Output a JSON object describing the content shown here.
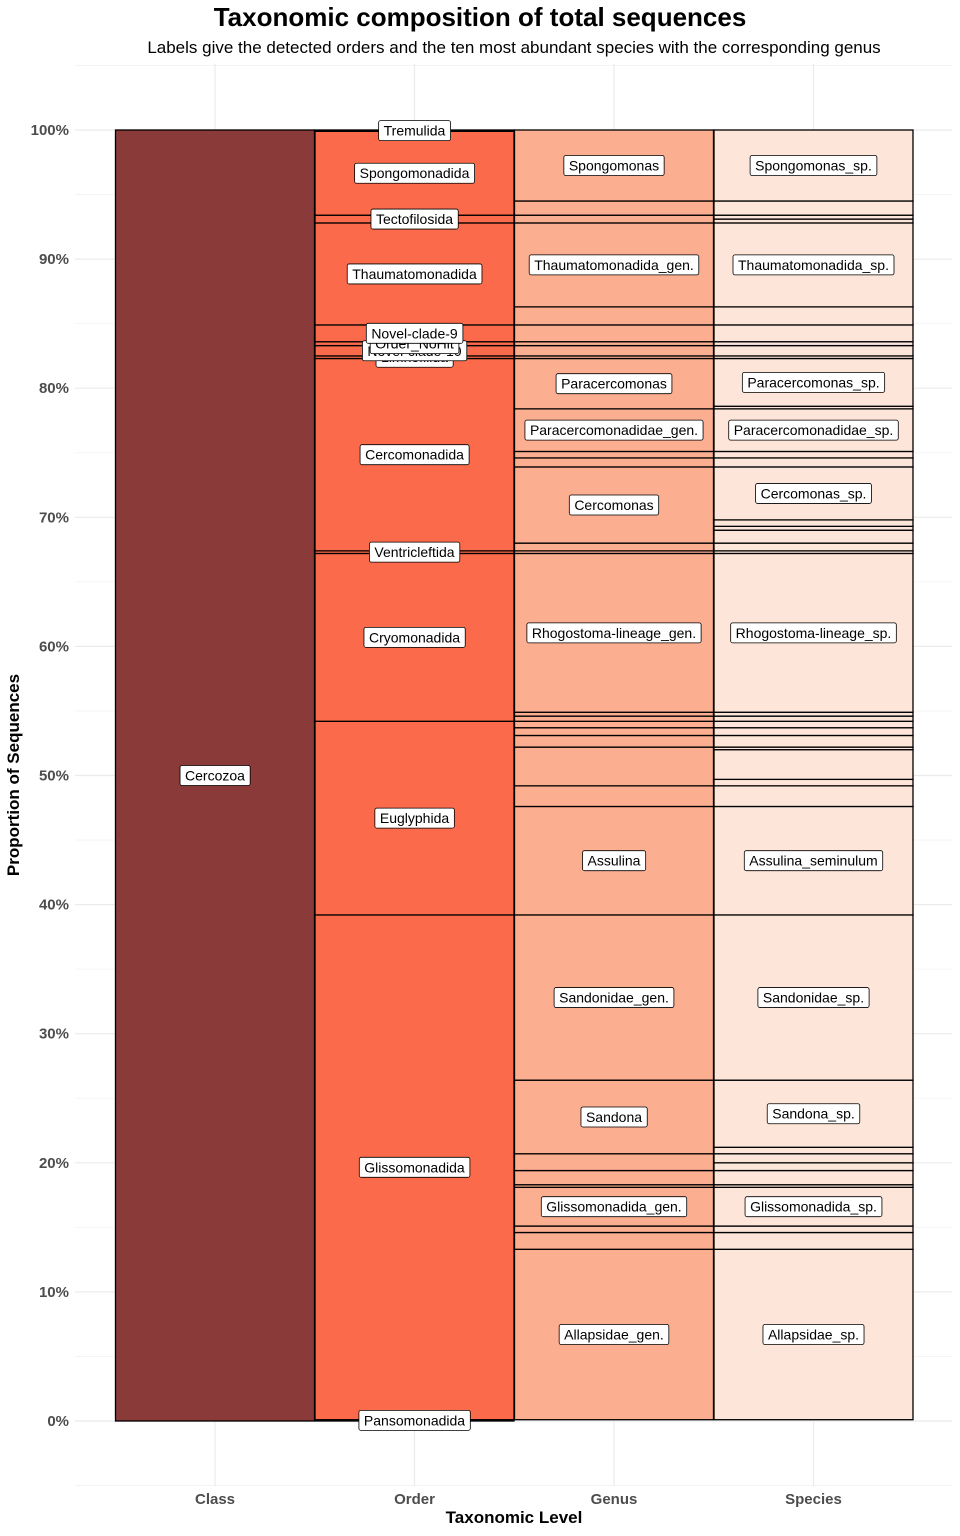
{
  "chart_data": {
    "type": "bar",
    "title": "Taxonomic composition of total sequences",
    "subtitle": "Labels give the detected orders and the ten most abundant species with the corresponding genus",
    "xlabel": "Taxonomic Level",
    "ylabel": "Proportion of Sequences",
    "ylim": [
      0,
      1
    ],
    "y_ticks": [
      "0%",
      "10%",
      "20%",
      "30%",
      "40%",
      "50%",
      "60%",
      "70%",
      "80%",
      "90%",
      "100%"
    ],
    "grid": true,
    "categories": [
      "Class",
      "Order",
      "Genus",
      "Species"
    ],
    "colors": {
      "Class": "#8b3a3a",
      "Order": "#fb6a4a",
      "Genus": "#fcae91",
      "Species": "#fee5d9",
      "outline": "#000000",
      "grid": "#ebebeb"
    },
    "series": [
      {
        "level": "Class",
        "segments": [
          {
            "label": "Cercozoa",
            "from": 0.0,
            "to": 1.0
          }
        ]
      },
      {
        "level": "Order",
        "segments": [
          {
            "label": "Pansomonadida",
            "from": 0.0,
            "to": 0.001
          },
          {
            "label": "Glissomonadida",
            "from": 0.001,
            "to": 0.392
          },
          {
            "label": "Euglyphida",
            "from": 0.392,
            "to": 0.542
          },
          {
            "label": "Cryomonadida",
            "from": 0.542,
            "to": 0.672
          },
          {
            "label": "Ventricleftida",
            "from": 0.672,
            "to": 0.674
          },
          {
            "label": "Cercomonadida",
            "from": 0.674,
            "to": 0.823
          },
          {
            "label": "Limnofilida",
            "from": 0.823,
            "to": 0.825
          },
          {
            "label": "Novel-clade-10",
            "from": 0.825,
            "to": 0.833
          },
          {
            "label": "Order_NoHit",
            "from": 0.833,
            "to": 0.836
          },
          {
            "label": "Novel-clade-9",
            "from": 0.836,
            "to": 0.849
          },
          {
            "label": "Thaumatomonadida",
            "from": 0.849,
            "to": 0.928
          },
          {
            "label": "Tectofilosida",
            "from": 0.928,
            "to": 0.934
          },
          {
            "label": "Spongomonadida",
            "from": 0.934,
            "to": 0.999
          },
          {
            "label": "Tremulida",
            "from": 0.999,
            "to": 1.0
          }
        ]
      },
      {
        "level": "Genus",
        "segments": [
          {
            "label": "Allapsidae_gen.",
            "from": 0.001,
            "to": 0.133
          },
          {
            "label": "",
            "from": 0.133,
            "to": 0.146
          },
          {
            "label": "",
            "from": 0.146,
            "to": 0.151
          },
          {
            "label": "Glissomonadida_gen.",
            "from": 0.151,
            "to": 0.181
          },
          {
            "label": "",
            "from": 0.181,
            "to": 0.183
          },
          {
            "label": "",
            "from": 0.183,
            "to": 0.194
          },
          {
            "label": "",
            "from": 0.194,
            "to": 0.207
          },
          {
            "label": "Sandona",
            "from": 0.207,
            "to": 0.264
          },
          {
            "label": "Sandonidae_gen.",
            "from": 0.264,
            "to": 0.392
          },
          {
            "label": "Assulina",
            "from": 0.392,
            "to": 0.476
          },
          {
            "label": "",
            "from": 0.476,
            "to": 0.492
          },
          {
            "label": "",
            "from": 0.492,
            "to": 0.522
          },
          {
            "label": "",
            "from": 0.522,
            "to": 0.531
          },
          {
            "label": "",
            "from": 0.531,
            "to": 0.537
          },
          {
            "label": "",
            "from": 0.537,
            "to": 0.542
          },
          {
            "label": "",
            "from": 0.542,
            "to": 0.546
          },
          {
            "label": "",
            "from": 0.546,
            "to": 0.549
          },
          {
            "label": "Rhogostoma-lineage_gen.",
            "from": 0.549,
            "to": 0.672
          },
          {
            "label": "",
            "from": 0.672,
            "to": 0.674
          },
          {
            "label": "",
            "from": 0.674,
            "to": 0.68
          },
          {
            "label": "Cercomonas",
            "from": 0.68,
            "to": 0.739
          },
          {
            "label": "",
            "from": 0.739,
            "to": 0.746
          },
          {
            "label": "",
            "from": 0.746,
            "to": 0.751
          },
          {
            "label": "Paracercomonadidae_gen.",
            "from": 0.751,
            "to": 0.784
          },
          {
            "label": "Paracercomonas",
            "from": 0.784,
            "to": 0.823
          },
          {
            "label": "",
            "from": 0.823,
            "to": 0.825
          },
          {
            "label": "",
            "from": 0.825,
            "to": 0.833
          },
          {
            "label": "",
            "from": 0.833,
            "to": 0.836
          },
          {
            "label": "",
            "from": 0.836,
            "to": 0.849
          },
          {
            "label": "",
            "from": 0.849,
            "to": 0.863
          },
          {
            "label": "Thaumatomonadida_gen.",
            "from": 0.863,
            "to": 0.928
          },
          {
            "label": "",
            "from": 0.928,
            "to": 0.934
          },
          {
            "label": "",
            "from": 0.934,
            "to": 0.945
          },
          {
            "label": "Spongomonas",
            "from": 0.945,
            "to": 1.0
          }
        ]
      },
      {
        "level": "Species",
        "segments": [
          {
            "label": "Allapsidae_sp.",
            "from": 0.001,
            "to": 0.133
          },
          {
            "label": "",
            "from": 0.133,
            "to": 0.146
          },
          {
            "label": "",
            "from": 0.146,
            "to": 0.151
          },
          {
            "label": "Glissomonadida_sp.",
            "from": 0.151,
            "to": 0.181
          },
          {
            "label": "",
            "from": 0.181,
            "to": 0.183
          },
          {
            "label": "",
            "from": 0.183,
            "to": 0.194
          },
          {
            "label": "",
            "from": 0.194,
            "to": 0.2
          },
          {
            "label": "",
            "from": 0.2,
            "to": 0.207
          },
          {
            "label": "",
            "from": 0.207,
            "to": 0.212
          },
          {
            "label": "Sandona_sp.",
            "from": 0.212,
            "to": 0.264
          },
          {
            "label": "Sandonidae_sp.",
            "from": 0.264,
            "to": 0.392
          },
          {
            "label": "Assulina_seminulum",
            "from": 0.392,
            "to": 0.476
          },
          {
            "label": "",
            "from": 0.476,
            "to": 0.492
          },
          {
            "label": "",
            "from": 0.492,
            "to": 0.497
          },
          {
            "label": "",
            "from": 0.497,
            "to": 0.52
          },
          {
            "label": "",
            "from": 0.52,
            "to": 0.522
          },
          {
            "label": "",
            "from": 0.522,
            "to": 0.531
          },
          {
            "label": "",
            "from": 0.531,
            "to": 0.537
          },
          {
            "label": "",
            "from": 0.537,
            "to": 0.542
          },
          {
            "label": "",
            "from": 0.542,
            "to": 0.546
          },
          {
            "label": "",
            "from": 0.546,
            "to": 0.549
          },
          {
            "label": "Rhogostoma-lineage_sp.",
            "from": 0.549,
            "to": 0.672
          },
          {
            "label": "",
            "from": 0.672,
            "to": 0.674
          },
          {
            "label": "",
            "from": 0.674,
            "to": 0.68
          },
          {
            "label": "",
            "from": 0.68,
            "to": 0.69
          },
          {
            "label": "",
            "from": 0.69,
            "to": 0.693
          },
          {
            "label": "",
            "from": 0.693,
            "to": 0.698
          },
          {
            "label": "Cercomonas_sp.",
            "from": 0.698,
            "to": 0.739
          },
          {
            "label": "",
            "from": 0.739,
            "to": 0.746
          },
          {
            "label": "",
            "from": 0.746,
            "to": 0.751
          },
          {
            "label": "Paracercomonadidae_sp.",
            "from": 0.751,
            "to": 0.784
          },
          {
            "label": "",
            "from": 0.784,
            "to": 0.786
          },
          {
            "label": "Paracercomonas_sp.",
            "from": 0.786,
            "to": 0.823
          },
          {
            "label": "",
            "from": 0.823,
            "to": 0.825
          },
          {
            "label": "",
            "from": 0.825,
            "to": 0.833
          },
          {
            "label": "",
            "from": 0.833,
            "to": 0.836
          },
          {
            "label": "",
            "from": 0.836,
            "to": 0.849
          },
          {
            "label": "",
            "from": 0.849,
            "to": 0.863
          },
          {
            "label": "Thaumatomonadida_sp.",
            "from": 0.863,
            "to": 0.928
          },
          {
            "label": "",
            "from": 0.928,
            "to": 0.931
          },
          {
            "label": "",
            "from": 0.931,
            "to": 0.934
          },
          {
            "label": "",
            "from": 0.934,
            "to": 0.945
          },
          {
            "label": "Spongomonas_sp.",
            "from": 0.945,
            "to": 1.0
          }
        ]
      }
    ]
  }
}
